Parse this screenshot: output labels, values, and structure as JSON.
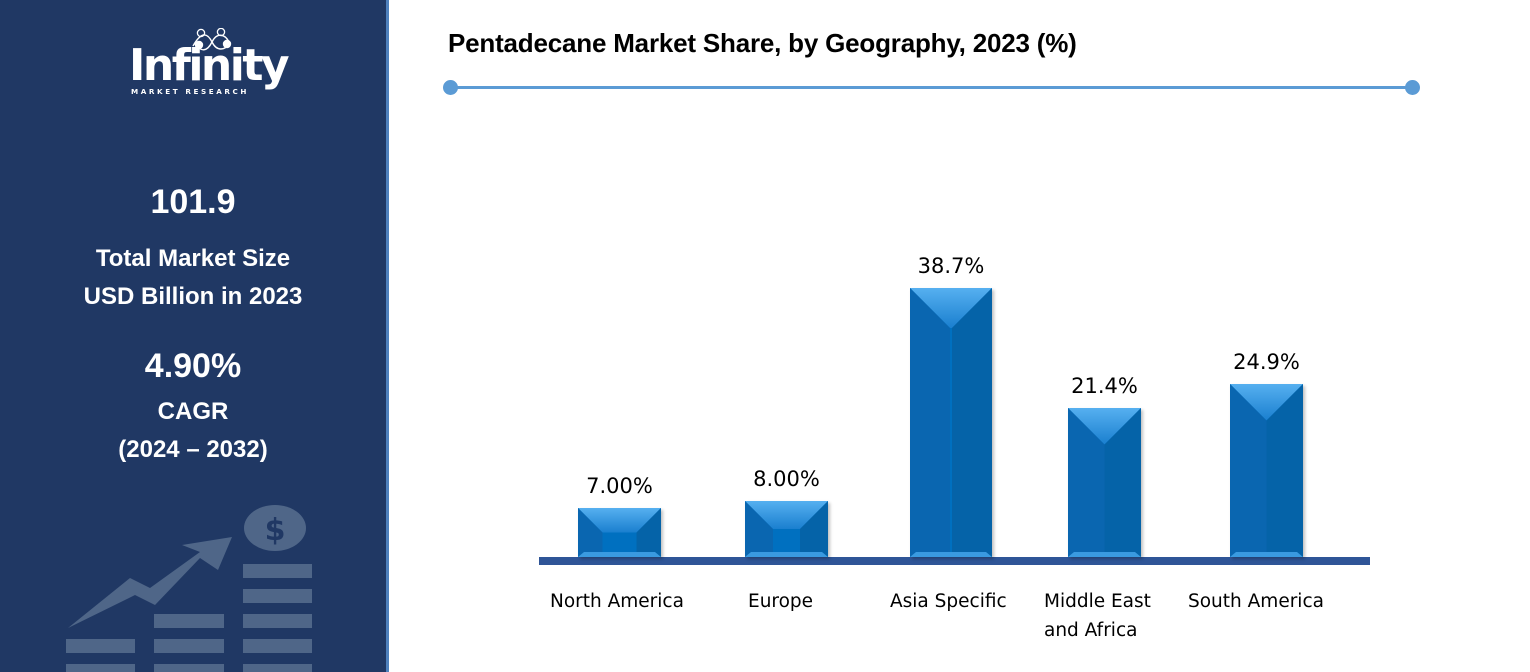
{
  "sidebar": {
    "logo": {
      "name": "Infinity",
      "subtitle": "MARKET RESEARCH"
    },
    "market_size": {
      "value": "101.9",
      "label_line1": "Total Market Size",
      "label_line2": "USD Billion in 2023"
    },
    "cagr": {
      "value": "4.90%",
      "label_line1": "CAGR",
      "label_line2": "(2024 – 2032)"
    },
    "decor_icon": "growth-chart-dollar-icon",
    "colors": {
      "background": "#203864",
      "border": "#4f81bd",
      "icon": "#4f6688"
    }
  },
  "chart_data": {
    "type": "bar",
    "title": "Pentadecane Market Share, by Geography, 2023 (%)",
    "xlabel": "",
    "ylabel": "",
    "categories": [
      "North America",
      "Europe",
      "Asia Specific",
      "Middle East and Africa",
      "South America"
    ],
    "category_labels": [
      [
        "North America"
      ],
      [
        "Europe"
      ],
      [
        "Asia Specific"
      ],
      [
        "Middle East",
        "and Africa"
      ],
      [
        "South America"
      ]
    ],
    "values": [
      7.0,
      8.0,
      38.7,
      21.4,
      24.9
    ],
    "value_labels": [
      "7.00%",
      "8.00%",
      "38.7%",
      "21.4%",
      "24.9%"
    ],
    "grid": false,
    "legend": "none",
    "ylim": [
      0,
      40
    ],
    "colors": {
      "bar": "#0070c0",
      "bar_highlight": "#56b0f0",
      "baseline": "#2f5597",
      "title_rule": "#5b9bd5"
    }
  }
}
